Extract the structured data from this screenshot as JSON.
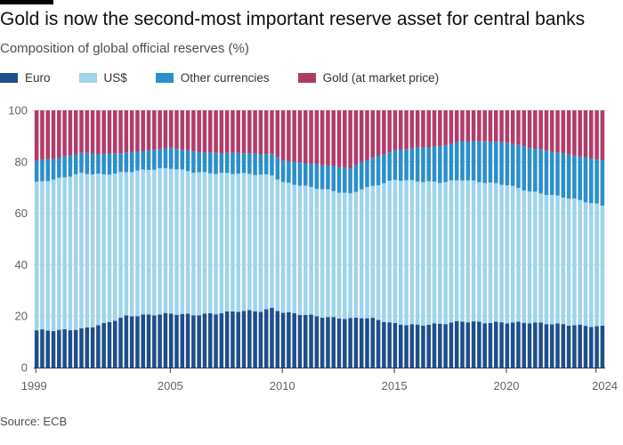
{
  "header": {
    "title": "Gold is now the second-most important reserve asset for central banks",
    "subtitle": "Composition of global official reserves (%)"
  },
  "footer": {
    "source": "Source: ECB"
  },
  "colors": {
    "euro": "#1e4e8c",
    "usd": "#9fd4eb",
    "other": "#2a8fcc",
    "gold": "#b13c6a",
    "grid": "#e0ddd8",
    "axis": "#333333"
  },
  "chart_data": {
    "type": "bar",
    "stacked": true,
    "title": "Composition of global official reserves (%)",
    "xlabel": "",
    "ylabel": "",
    "ylim": [
      0,
      100
    ],
    "yticks": [
      0,
      20,
      40,
      60,
      80,
      100
    ],
    "xticks": [
      "1999",
      "2005",
      "2010",
      "2015",
      "2020",
      "2024"
    ],
    "x_start": 1999,
    "x_end": 2024.5,
    "bars_per_year": 4,
    "legend": [
      "Euro",
      "US$",
      "Other currencies",
      "Gold (at market price)"
    ],
    "series": [
      {
        "name": "Euro",
        "color_key": "euro",
        "anchors": [
          [
            1999,
            14.5
          ],
          [
            2000,
            14.5
          ],
          [
            2001,
            15
          ],
          [
            2002,
            17
          ],
          [
            2003,
            20
          ],
          [
            2004,
            20.5
          ],
          [
            2005,
            21
          ],
          [
            2006,
            20.5
          ],
          [
            2007,
            21
          ],
          [
            2008,
            22
          ],
          [
            2009,
            22
          ],
          [
            2009.5,
            23
          ],
          [
            2010,
            21.5
          ],
          [
            2011,
            20.5
          ],
          [
            2012,
            19.5
          ],
          [
            2013,
            19
          ],
          [
            2013.5,
            19.5
          ],
          [
            2014,
            19
          ],
          [
            2015,
            17
          ],
          [
            2016,
            16.5
          ],
          [
            2017,
            17
          ],
          [
            2018,
            18
          ],
          [
            2019,
            17.5
          ],
          [
            2020,
            17.5
          ],
          [
            2021,
            17.5
          ],
          [
            2022,
            17
          ],
          [
            2023,
            16.5
          ],
          [
            2024,
            16
          ],
          [
            2024.5,
            16
          ]
        ]
      },
      {
        "name": "US$",
        "color_key": "usd",
        "anchors": [
          [
            1999,
            57.5
          ],
          [
            2000,
            59
          ],
          [
            2001,
            60.5
          ],
          [
            2002,
            58
          ],
          [
            2003,
            56
          ],
          [
            2004,
            56.5
          ],
          [
            2005,
            56.5
          ],
          [
            2006,
            55.5
          ],
          [
            2007,
            54.5
          ],
          [
            2008,
            53.5
          ],
          [
            2009,
            53
          ],
          [
            2010,
            50.5
          ],
          [
            2011,
            50
          ],
          [
            2012,
            49.5
          ],
          [
            2013,
            48.5
          ],
          [
            2014,
            51.5
          ],
          [
            2015,
            56
          ],
          [
            2016,
            56
          ],
          [
            2017,
            55
          ],
          [
            2018,
            55
          ],
          [
            2019,
            54.5
          ],
          [
            2020,
            53.5
          ],
          [
            2021,
            51
          ],
          [
            2022,
            50
          ],
          [
            2023,
            49
          ],
          [
            2024,
            47.5
          ],
          [
            2024.5,
            46.5
          ]
        ]
      },
      {
        "name": "Other currencies",
        "color_key": "other",
        "anchors": [
          [
            1999,
            8.5
          ],
          [
            2000,
            8
          ],
          [
            2001,
            8
          ],
          [
            2002,
            8
          ],
          [
            2003,
            7.5
          ],
          [
            2004,
            7.5
          ],
          [
            2005,
            8
          ],
          [
            2006,
            8
          ],
          [
            2007,
            8
          ],
          [
            2008,
            8
          ],
          [
            2009,
            8
          ],
          [
            2010,
            8.5
          ],
          [
            2011,
            9
          ],
          [
            2012,
            9.5
          ],
          [
            2013,
            10
          ],
          [
            2014,
            11
          ],
          [
            2015,
            11.5
          ],
          [
            2016,
            13
          ],
          [
            2017,
            14
          ],
          [
            2018,
            15
          ],
          [
            2019,
            16
          ],
          [
            2020,
            16.5
          ],
          [
            2021,
            17
          ],
          [
            2022,
            17
          ],
          [
            2023,
            17
          ],
          [
            2024,
            17.5
          ],
          [
            2024.5,
            17.5
          ]
        ]
      },
      {
        "name": "Gold (at market price)",
        "color_key": "gold",
        "remainder": true
      }
    ]
  }
}
